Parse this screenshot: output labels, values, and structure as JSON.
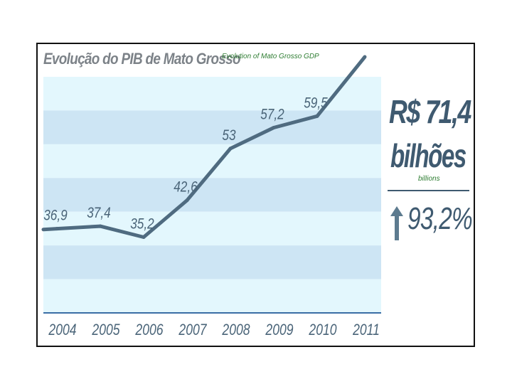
{
  "chart_data": {
    "type": "line",
    "title": "Evolução do PIB de Mato Grosso",
    "subtitle": "Evolution of Mato Grosso GDP",
    "categories": [
      "2004",
      "2005",
      "2006",
      "2007",
      "2008",
      "2009",
      "2010",
      "2011"
    ],
    "series": [
      {
        "name": "PIB",
        "values": [
          36.9,
          37.4,
          35.2,
          42.6,
          53,
          57.2,
          59.5,
          71.4
        ]
      }
    ],
    "value_labels": [
      "36,9",
      "37,4",
      "35,2",
      "42,6",
      "53",
      "57,2",
      "59,5"
    ],
    "ylim": [
      20,
      71.4
    ],
    "grid": "horizontal bands",
    "colors": {
      "line": "#4f6b80",
      "band_light": "#e3f7fd",
      "band_dark": "#cde5f4",
      "axis": "#3a6ea5",
      "text": "#4a6478"
    }
  },
  "highlight": {
    "value": "R$ 71,4",
    "unit": "bilhões",
    "unit_en": "billions",
    "growth": "93,2%",
    "growth_icon": "up-arrow-icon"
  }
}
